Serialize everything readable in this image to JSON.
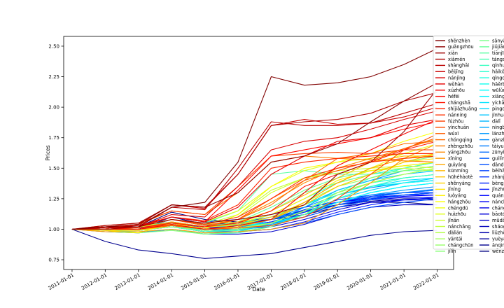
{
  "chart_data": {
    "type": "line",
    "title": "",
    "xlabel": "Date",
    "ylabel": "Prices",
    "x_ticks": [
      "2011-01-01",
      "2012-01-01",
      "2013-01-01",
      "2014-01-01",
      "2015-01-01",
      "2016-01-01",
      "2017-01-01",
      "2018-01-01",
      "2019-01-01",
      "2020-01-01",
      "2021-01-01",
      "2022-01-01"
    ],
    "y_ticks": [
      "0.75",
      "1.00",
      "1.25",
      "1.50",
      "1.75",
      "2.00",
      "2.25",
      "2.50"
    ],
    "xlim": [
      "2010-10-01",
      "2022-07-01"
    ],
    "ylim": [
      0.67,
      2.58
    ],
    "grid": false,
    "legend_placement": "upper right, two columns, overlapping plot edge",
    "colormap": "jet",
    "series": [
      {
        "name": "shēnzhèn",
        "values": [
          1.0,
          1.02,
          1.02,
          1.18,
          1.22,
          1.55,
          2.25,
          2.18,
          2.2,
          2.25,
          2.35,
          2.48
        ]
      },
      {
        "name": "guǎngzhōu",
        "values": [
          1.0,
          1.02,
          1.04,
          1.2,
          1.18,
          1.3,
          1.55,
          1.6,
          1.7,
          1.88,
          2.05,
          2.2
        ]
      },
      {
        "name": "xiàn",
        "values": [
          1.0,
          1.0,
          1.02,
          1.08,
          1.05,
          1.08,
          1.12,
          1.2,
          1.45,
          1.55,
          1.8,
          2.15
        ]
      },
      {
        "name": "xiàmén",
        "values": [
          1.0,
          1.03,
          1.05,
          1.2,
          1.18,
          1.45,
          1.85,
          1.88,
          1.9,
          1.95,
          2.05,
          2.12
        ]
      },
      {
        "name": "shànghǎi",
        "values": [
          1.0,
          1.01,
          1.03,
          1.18,
          1.16,
          1.5,
          1.88,
          1.85,
          1.85,
          1.87,
          1.95,
          2.03
        ]
      },
      {
        "name": "běijīng",
        "values": [
          1.0,
          1.02,
          1.04,
          1.2,
          1.17,
          1.45,
          1.85,
          1.9,
          1.86,
          1.87,
          1.92,
          2.0
        ]
      },
      {
        "name": "nánjīng",
        "values": [
          1.0,
          1.01,
          1.02,
          1.12,
          1.1,
          1.35,
          1.65,
          1.72,
          1.75,
          1.82,
          1.9,
          1.97
        ]
      },
      {
        "name": "wǔhàn",
        "values": [
          1.0,
          1.0,
          1.02,
          1.1,
          1.06,
          1.18,
          1.45,
          1.6,
          1.72,
          1.75,
          1.85,
          1.9
        ]
      },
      {
        "name": "xúzhōu",
        "values": [
          1.0,
          1.0,
          1.0,
          1.04,
          1.0,
          1.03,
          1.08,
          1.3,
          1.52,
          1.65,
          1.78,
          1.9
        ]
      },
      {
        "name": "héféi",
        "values": [
          1.0,
          1.01,
          1.02,
          1.1,
          1.06,
          1.32,
          1.6,
          1.65,
          1.7,
          1.75,
          1.82,
          1.88
        ]
      },
      {
        "name": "chángshā",
        "values": [
          1.0,
          1.0,
          1.01,
          1.05,
          1.02,
          1.05,
          1.15,
          1.35,
          1.45,
          1.55,
          1.65,
          1.72
        ]
      },
      {
        "name": "shíjiāzhuāng",
        "values": [
          1.0,
          1.02,
          1.03,
          1.1,
          1.07,
          1.2,
          1.5,
          1.55,
          1.58,
          1.6,
          1.62,
          1.62
        ]
      },
      {
        "name": "nánníng",
        "values": [
          1.0,
          1.01,
          1.02,
          1.08,
          1.04,
          1.1,
          1.25,
          1.42,
          1.5,
          1.55,
          1.58,
          1.6
        ]
      },
      {
        "name": "fúzhōu",
        "values": [
          1.0,
          1.03,
          1.05,
          1.15,
          1.12,
          1.35,
          1.6,
          1.62,
          1.63,
          1.62,
          1.65,
          1.65
        ]
      },
      {
        "name": "yínchuān",
        "values": [
          1.0,
          1.0,
          1.0,
          1.03,
          1.0,
          1.01,
          1.03,
          1.1,
          1.25,
          1.45,
          1.65,
          1.78
        ]
      },
      {
        "name": "wúxī",
        "values": [
          1.0,
          1.0,
          1.0,
          1.05,
          1.02,
          1.08,
          1.25,
          1.4,
          1.48,
          1.56,
          1.66,
          1.75
        ]
      },
      {
        "name": "chóngqìng",
        "values": [
          1.0,
          1.01,
          1.02,
          1.08,
          1.03,
          1.08,
          1.2,
          1.4,
          1.58,
          1.62,
          1.7,
          1.72
        ]
      },
      {
        "name": "zhèngzhōu",
        "values": [
          1.0,
          1.02,
          1.04,
          1.15,
          1.12,
          1.3,
          1.55,
          1.6,
          1.58,
          1.57,
          1.56,
          1.55
        ]
      },
      {
        "name": "yángzhōu",
        "values": [
          1.0,
          1.0,
          1.01,
          1.06,
          1.02,
          1.08,
          1.22,
          1.38,
          1.5,
          1.58,
          1.66,
          1.74
        ]
      },
      {
        "name": "xīníng",
        "values": [
          1.0,
          0.98,
          0.98,
          1.0,
          0.97,
          0.98,
          1.0,
          1.05,
          1.2,
          1.38,
          1.58,
          1.7
        ]
      },
      {
        "name": "guìyáng",
        "values": [
          1.0,
          1.0,
          1.0,
          1.04,
          1.0,
          1.02,
          1.08,
          1.22,
          1.38,
          1.5,
          1.58,
          1.6
        ]
      },
      {
        "name": "kūnmíng",
        "values": [
          1.0,
          1.01,
          1.02,
          1.08,
          1.04,
          1.06,
          1.15,
          1.28,
          1.42,
          1.55,
          1.6,
          1.6
        ]
      },
      {
        "name": "hūhéhàotè",
        "values": [
          1.0,
          0.99,
          0.99,
          1.03,
          1.0,
          1.02,
          1.08,
          1.2,
          1.35,
          1.45,
          1.55,
          1.62
        ]
      },
      {
        "name": "shěnyáng",
        "values": [
          1.0,
          1.0,
          1.01,
          1.06,
          1.02,
          1.04,
          1.1,
          1.22,
          1.38,
          1.5,
          1.58,
          1.62
        ]
      },
      {
        "name": "jǐníng",
        "values": [
          1.0,
          1.0,
          1.0,
          1.03,
          1.0,
          1.02,
          1.08,
          1.2,
          1.35,
          1.45,
          1.55,
          1.58
        ]
      },
      {
        "name": "luòyáng",
        "values": [
          1.0,
          1.0,
          1.0,
          1.04,
          1.01,
          1.05,
          1.12,
          1.25,
          1.4,
          1.48,
          1.52,
          1.55
        ]
      },
      {
        "name": "hángzhōu",
        "values": [
          1.0,
          0.99,
          0.97,
          1.05,
          1.0,
          1.12,
          1.35,
          1.5,
          1.55,
          1.62,
          1.72,
          1.8
        ]
      },
      {
        "name": "chéngdū",
        "values": [
          1.0,
          1.0,
          1.0,
          1.04,
          1.0,
          1.02,
          1.08,
          1.22,
          1.38,
          1.5,
          1.62,
          1.7
        ]
      },
      {
        "name": "huìzhōu",
        "values": [
          1.0,
          1.01,
          1.02,
          1.1,
          1.06,
          1.15,
          1.35,
          1.48,
          1.55,
          1.58,
          1.62,
          1.62
        ]
      },
      {
        "name": "jǐnán",
        "values": [
          1.0,
          1.0,
          1.01,
          1.08,
          1.04,
          1.1,
          1.3,
          1.42,
          1.48,
          1.5,
          1.52,
          1.5
        ]
      },
      {
        "name": "nánchāng",
        "values": [
          1.0,
          1.01,
          1.02,
          1.08,
          1.04,
          1.12,
          1.32,
          1.42,
          1.46,
          1.48,
          1.5,
          1.48
        ]
      },
      {
        "name": "dàlián",
        "values": [
          1.0,
          1.0,
          0.99,
          1.04,
          1.0,
          1.01,
          1.05,
          1.15,
          1.3,
          1.38,
          1.45,
          1.5
        ]
      },
      {
        "name": "yāntái",
        "values": [
          1.0,
          1.0,
          0.99,
          1.02,
          0.99,
          1.0,
          1.05,
          1.15,
          1.3,
          1.38,
          1.45,
          1.5
        ]
      },
      {
        "name": "chángchūn",
        "values": [
          1.0,
          1.0,
          1.0,
          1.05,
          1.02,
          1.03,
          1.1,
          1.22,
          1.35,
          1.42,
          1.48,
          1.52
        ]
      },
      {
        "name": "jílín",
        "values": [
          1.0,
          0.98,
          0.97,
          0.99,
          0.96,
          0.98,
          1.02,
          1.12,
          1.28,
          1.38,
          1.45,
          1.5
        ]
      },
      {
        "name": "sānyà",
        "values": [
          1.0,
          1.02,
          1.02,
          1.05,
          1.02,
          1.05,
          1.15,
          1.3,
          1.38,
          1.45,
          1.55,
          1.6
        ]
      },
      {
        "name": "jiǔjiāng",
        "values": [
          1.0,
          1.0,
          1.01,
          1.06,
          1.02,
          1.06,
          1.18,
          1.32,
          1.42,
          1.48,
          1.52,
          1.55
        ]
      },
      {
        "name": "tiānjīn",
        "values": [
          1.0,
          1.01,
          1.02,
          1.08,
          1.05,
          1.15,
          1.45,
          1.48,
          1.45,
          1.45,
          1.48,
          1.48
        ]
      },
      {
        "name": "tángshān",
        "values": [
          1.0,
          1.0,
          1.0,
          1.02,
          0.98,
          0.99,
          1.05,
          1.15,
          1.3,
          1.42,
          1.5,
          1.55
        ]
      },
      {
        "name": "qínhuángdǎo",
        "values": [
          1.0,
          0.99,
          0.98,
          1.0,
          0.96,
          0.97,
          1.02,
          1.12,
          1.25,
          1.35,
          1.42,
          1.45
        ]
      },
      {
        "name": "hǎikǒu",
        "values": [
          1.0,
          1.01,
          1.02,
          1.06,
          1.02,
          1.04,
          1.1,
          1.2,
          1.3,
          1.38,
          1.42,
          1.45
        ]
      },
      {
        "name": "qīngdǎo",
        "values": [
          1.0,
          1.0,
          1.01,
          1.06,
          1.02,
          1.04,
          1.12,
          1.25,
          1.38,
          1.45,
          1.5,
          1.55
        ]
      },
      {
        "name": "hāěrbīn",
        "values": [
          1.0,
          1.0,
          1.0,
          1.04,
          1.0,
          1.01,
          1.05,
          1.15,
          1.28,
          1.35,
          1.38,
          1.4
        ]
      },
      {
        "name": "wūlǔmùqí",
        "values": [
          1.0,
          1.01,
          1.02,
          1.08,
          1.04,
          1.03,
          1.05,
          1.12,
          1.22,
          1.3,
          1.35,
          1.38
        ]
      },
      {
        "name": "xiāngyáng",
        "values": [
          1.0,
          1.0,
          1.0,
          1.04,
          1.0,
          1.02,
          1.08,
          1.2,
          1.3,
          1.38,
          1.42,
          1.45
        ]
      },
      {
        "name": "yíchāng",
        "values": [
          1.0,
          1.0,
          1.0,
          1.03,
          0.99,
          1.0,
          1.05,
          1.15,
          1.28,
          1.35,
          1.4,
          1.42
        ]
      },
      {
        "name": "píngdǐngshān",
        "values": [
          1.0,
          1.0,
          1.0,
          1.02,
          0.98,
          0.99,
          1.03,
          1.12,
          1.25,
          1.32,
          1.38,
          1.42
        ]
      },
      {
        "name": "jīnhuá",
        "values": [
          1.0,
          1.0,
          0.99,
          1.02,
          0.98,
          1.0,
          1.08,
          1.2,
          1.32,
          1.4,
          1.45,
          1.48
        ]
      },
      {
        "name": "dàlǐ",
        "values": [
          1.0,
          1.0,
          1.0,
          1.03,
          0.99,
          1.0,
          1.04,
          1.12,
          1.22,
          1.3,
          1.35,
          1.38
        ]
      },
      {
        "name": "níngbō",
        "values": [
          1.0,
          0.99,
          0.97,
          1.0,
          0.96,
          0.98,
          1.05,
          1.18,
          1.32,
          1.4,
          1.48,
          1.52
        ]
      },
      {
        "name": "lánzhōu",
        "values": [
          1.0,
          1.0,
          1.0,
          1.05,
          1.02,
          1.02,
          1.05,
          1.12,
          1.22,
          1.28,
          1.32,
          1.35
        ]
      },
      {
        "name": "gànzhōu",
        "values": [
          1.0,
          1.0,
          1.0,
          1.04,
          1.0,
          1.02,
          1.08,
          1.18,
          1.28,
          1.34,
          1.38,
          1.4
        ]
      },
      {
        "name": "tàiyuán",
        "values": [
          1.0,
          1.01,
          1.02,
          1.08,
          1.04,
          1.04,
          1.08,
          1.15,
          1.22,
          1.28,
          1.3,
          1.32
        ]
      },
      {
        "name": "zūnyì",
        "values": [
          1.0,
          1.0,
          1.0,
          1.03,
          0.99,
          1.0,
          1.04,
          1.12,
          1.2,
          1.26,
          1.3,
          1.33
        ]
      },
      {
        "name": "guìlín",
        "values": [
          1.0,
          1.0,
          1.0,
          1.03,
          0.99,
          1.0,
          1.03,
          1.1,
          1.18,
          1.24,
          1.28,
          1.3
        ]
      },
      {
        "name": "dāndōng",
        "values": [
          1.0,
          1.0,
          0.99,
          1.02,
          0.98,
          0.98,
          1.0,
          1.05,
          1.12,
          1.18,
          1.22,
          1.25
        ]
      },
      {
        "name": "běihǎi",
        "values": [
          1.0,
          1.0,
          1.0,
          1.04,
          1.0,
          1.01,
          1.05,
          1.12,
          1.2,
          1.25,
          1.28,
          1.3
        ]
      },
      {
        "name": "zhànjiāng",
        "values": [
          1.0,
          1.0,
          1.0,
          1.04,
          1.0,
          1.02,
          1.06,
          1.14,
          1.22,
          1.27,
          1.3,
          1.32
        ]
      },
      {
        "name": "bèngbù",
        "values": [
          1.0,
          1.0,
          1.0,
          1.04,
          1.0,
          1.02,
          1.08,
          1.16,
          1.24,
          1.28,
          1.3,
          1.3
        ]
      },
      {
        "name": "jǐnzhōu",
        "values": [
          1.0,
          1.0,
          0.99,
          1.02,
          0.98,
          0.98,
          1.0,
          1.06,
          1.14,
          1.2,
          1.24,
          1.26
        ]
      },
      {
        "name": "quánzhōu",
        "values": [
          1.0,
          1.01,
          1.02,
          1.1,
          1.06,
          1.08,
          1.12,
          1.18,
          1.22,
          1.25,
          1.27,
          1.28
        ]
      },
      {
        "name": "nánchōng",
        "values": [
          1.0,
          1.0,
          1.0,
          1.05,
          1.01,
          1.02,
          1.06,
          1.14,
          1.22,
          1.26,
          1.28,
          1.28
        ]
      },
      {
        "name": "chángdé",
        "values": [
          1.0,
          1.0,
          1.0,
          1.05,
          1.01,
          1.02,
          1.06,
          1.12,
          1.2,
          1.24,
          1.26,
          1.26
        ]
      },
      {
        "name": "bāotóu",
        "values": [
          1.0,
          1.0,
          1.0,
          1.05,
          1.0,
          1.0,
          1.02,
          1.08,
          1.16,
          1.22,
          1.24,
          1.24
        ]
      },
      {
        "name": "mǔdānjiāng",
        "values": [
          1.0,
          0.98,
          0.97,
          1.0,
          0.96,
          0.96,
          0.98,
          1.04,
          1.12,
          1.18,
          1.2,
          1.2
        ]
      },
      {
        "name": "sháoguān",
        "values": [
          1.0,
          1.0,
          1.0,
          1.06,
          1.02,
          1.02,
          1.05,
          1.1,
          1.18,
          1.22,
          1.24,
          1.24
        ]
      },
      {
        "name": "liǔzhōu",
        "values": [
          1.0,
          1.0,
          1.0,
          1.08,
          1.03,
          1.04,
          1.08,
          1.14,
          1.2,
          1.25,
          1.28,
          1.3
        ]
      },
      {
        "name": "yuèyáng",
        "values": [
          1.0,
          1.0,
          1.0,
          1.1,
          1.04,
          1.05,
          1.1,
          1.15,
          1.2,
          1.23,
          1.25,
          1.25
        ]
      },
      {
        "name": "ānqìng",
        "values": [
          1.0,
          0.9,
          0.83,
          0.8,
          0.76,
          0.78,
          0.8,
          0.85,
          0.9,
          0.95,
          0.98,
          0.99
        ]
      },
      {
        "name": "wēnzhōu",
        "values": [
          1.0,
          1.01,
          1.02,
          1.14,
          1.08,
          1.06,
          1.08,
          1.12,
          1.18,
          1.22,
          1.22,
          1.2
        ]
      }
    ]
  }
}
